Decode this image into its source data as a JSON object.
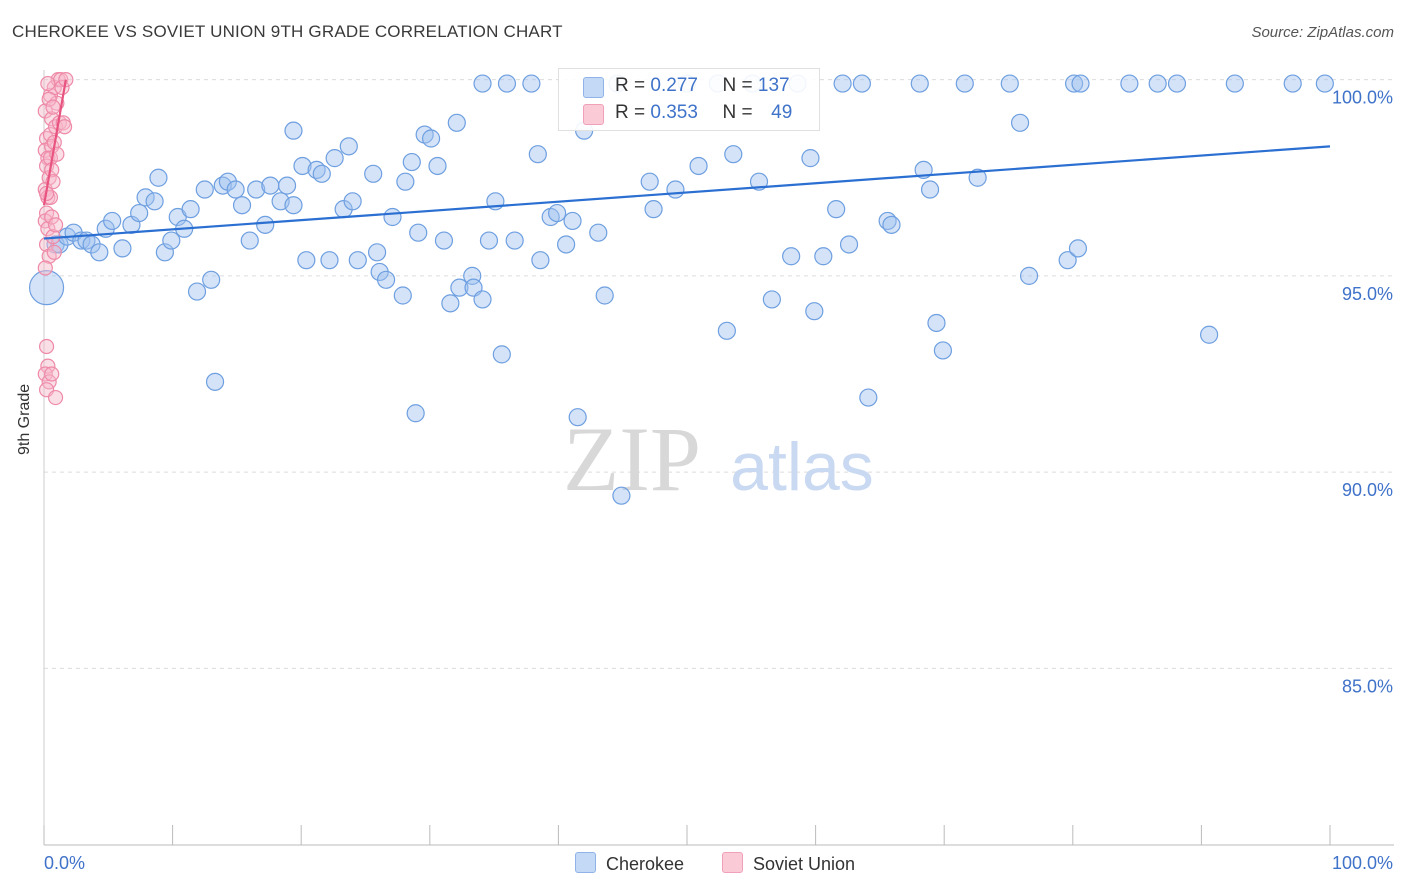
{
  "header": {
    "title": "CHEROKEE VS SOVIET UNION 9TH GRADE CORRELATION CHART",
    "source": "Source: ZipAtlas.com"
  },
  "watermark": {
    "zip": "ZIP",
    "atlas": "atlas"
  },
  "legend": {
    "r_label": "R =",
    "n_label": "N =",
    "items": [
      {
        "name": "Cherokee",
        "r": "0.277",
        "n": "137",
        "color": "#9fc1ef",
        "stroke": "#6e9fe0",
        "line": "#2a6fd1"
      },
      {
        "name": "Soviet Union",
        "r": "0.353",
        "n": "49",
        "color": "#f7b8ca",
        "stroke": "#ee8aa8",
        "line": "#e8547f"
      }
    ]
  },
  "chart_data": {
    "type": "scatter",
    "title": "CHEROKEE VS SOVIET UNION 9TH GRADE CORRELATION CHART",
    "xlabel": "",
    "ylabel": "9th Grade",
    "xlim": [
      0,
      100
    ],
    "ylim": [
      80.5,
      100.5
    ],
    "x_tick_labels": [
      "0.0%",
      "100.0%"
    ],
    "y_ticks": [
      85,
      90,
      95,
      100
    ],
    "y_tick_labels": [
      "85.0%",
      "90.0%",
      "95.0%",
      "100.0%"
    ],
    "grid": "horizontal dashed",
    "series": [
      {
        "name": "Cherokee",
        "r": 0.277,
        "n": 137,
        "trend": {
          "x": [
            0,
            100
          ],
          "y": [
            95.95,
            98.3
          ]
        },
        "points": [
          [
            0.2,
            94.7
          ],
          [
            0.9,
            95.8
          ],
          [
            1.2,
            95.8
          ],
          [
            1.8,
            96.0
          ],
          [
            2.3,
            96.1
          ],
          [
            2.9,
            95.9
          ],
          [
            3.3,
            95.9
          ],
          [
            3.7,
            95.8
          ],
          [
            4.3,
            95.6
          ],
          [
            4.8,
            96.2
          ],
          [
            5.3,
            96.4
          ],
          [
            6.1,
            95.7
          ],
          [
            6.8,
            96.3
          ],
          [
            7.4,
            96.6
          ],
          [
            7.9,
            97.0
          ],
          [
            8.6,
            96.9
          ],
          [
            8.9,
            97.5
          ],
          [
            9.4,
            95.6
          ],
          [
            9.9,
            95.9
          ],
          [
            10.4,
            96.5
          ],
          [
            10.9,
            96.2
          ],
          [
            11.4,
            96.7
          ],
          [
            11.9,
            94.6
          ],
          [
            12.5,
            97.2
          ],
          [
            13.0,
            94.9
          ],
          [
            13.3,
            92.3
          ],
          [
            13.9,
            97.3
          ],
          [
            14.3,
            97.4
          ],
          [
            14.9,
            97.2
          ],
          [
            15.4,
            96.8
          ],
          [
            16.0,
            95.9
          ],
          [
            16.5,
            97.2
          ],
          [
            17.2,
            96.3
          ],
          [
            17.6,
            97.3
          ],
          [
            18.4,
            96.9
          ],
          [
            18.9,
            97.3
          ],
          [
            19.4,
            96.8
          ],
          [
            19.4,
            98.7
          ],
          [
            20.1,
            97.8
          ],
          [
            20.4,
            95.4
          ],
          [
            21.2,
            97.7
          ],
          [
            21.6,
            97.6
          ],
          [
            22.2,
            95.4
          ],
          [
            22.6,
            98.0
          ],
          [
            23.3,
            96.7
          ],
          [
            23.7,
            98.3
          ],
          [
            24.0,
            96.9
          ],
          [
            24.4,
            95.4
          ],
          [
            25.6,
            97.6
          ],
          [
            25.9,
            95.6
          ],
          [
            26.1,
            95.1
          ],
          [
            26.6,
            94.9
          ],
          [
            27.1,
            96.5
          ],
          [
            27.9,
            94.5
          ],
          [
            28.1,
            97.4
          ],
          [
            28.6,
            97.9
          ],
          [
            28.9,
            91.5
          ],
          [
            29.1,
            96.1
          ],
          [
            29.6,
            98.6
          ],
          [
            30.1,
            98.5
          ],
          [
            30.6,
            97.8
          ],
          [
            31.1,
            95.9
          ],
          [
            31.6,
            94.3
          ],
          [
            32.1,
            98.9
          ],
          [
            32.3,
            94.7
          ],
          [
            33.3,
            95.0
          ],
          [
            33.4,
            94.7
          ],
          [
            34.1,
            94.4
          ],
          [
            34.1,
            99.9
          ],
          [
            34.6,
            95.9
          ],
          [
            35.1,
            96.9
          ],
          [
            35.6,
            93.0
          ],
          [
            36.0,
            99.9
          ],
          [
            36.6,
            95.9
          ],
          [
            37.9,
            99.9
          ],
          [
            38.4,
            98.1
          ],
          [
            38.6,
            95.4
          ],
          [
            39.4,
            96.5
          ],
          [
            39.9,
            96.6
          ],
          [
            40.6,
            95.8
          ],
          [
            41.1,
            96.4
          ],
          [
            41.5,
            91.4
          ],
          [
            42.0,
            98.7
          ],
          [
            43.1,
            96.1
          ],
          [
            43.6,
            94.5
          ],
          [
            44.6,
            99.9
          ],
          [
            44.9,
            89.4
          ],
          [
            47.1,
            97.4
          ],
          [
            47.4,
            96.7
          ],
          [
            49.1,
            97.2
          ],
          [
            50.0,
            99.9
          ],
          [
            50.9,
            97.8
          ],
          [
            52.4,
            99.9
          ],
          [
            53.1,
            93.6
          ],
          [
            53.6,
            98.1
          ],
          [
            55.1,
            99.9
          ],
          [
            55.6,
            97.4
          ],
          [
            56.6,
            94.4
          ],
          [
            58.1,
            95.5
          ],
          [
            58.6,
            99.9
          ],
          [
            59.6,
            98.0
          ],
          [
            59.9,
            94.1
          ],
          [
            60.6,
            95.5
          ],
          [
            61.6,
            96.7
          ],
          [
            62.1,
            99.9
          ],
          [
            62.6,
            95.8
          ],
          [
            63.6,
            99.9
          ],
          [
            64.1,
            91.9
          ],
          [
            65.6,
            96.4
          ],
          [
            65.9,
            96.3
          ],
          [
            68.1,
            99.9
          ],
          [
            68.4,
            97.7
          ],
          [
            68.9,
            97.2
          ],
          [
            69.4,
            93.8
          ],
          [
            69.9,
            93.1
          ],
          [
            71.6,
            99.9
          ],
          [
            72.6,
            97.5
          ],
          [
            75.1,
            99.9
          ],
          [
            75.9,
            98.9
          ],
          [
            76.6,
            95.0
          ],
          [
            79.6,
            95.4
          ],
          [
            80.1,
            99.9
          ],
          [
            80.4,
            95.7
          ],
          [
            80.6,
            99.9
          ],
          [
            84.4,
            99.9
          ],
          [
            86.6,
            99.9
          ],
          [
            88.1,
            99.9
          ],
          [
            90.6,
            93.5
          ],
          [
            92.6,
            99.9
          ],
          [
            97.1,
            99.9
          ],
          [
            99.6,
            99.9
          ]
        ]
      },
      {
        "name": "Soviet Union",
        "r": 0.353,
        "n": 49,
        "trend": {
          "x": [
            0,
            1.7
          ],
          "y": [
            96.8,
            100.0
          ]
        },
        "points": [
          [
            0.1,
            99.2
          ],
          [
            0.2,
            98.5
          ],
          [
            0.1,
            98.2
          ],
          [
            0.3,
            98.0
          ],
          [
            0.2,
            97.8
          ],
          [
            0.4,
            97.5
          ],
          [
            0.1,
            97.2
          ],
          [
            0.3,
            97.0
          ],
          [
            0.2,
            96.6
          ],
          [
            0.1,
            96.4
          ],
          [
            0.3,
            96.2
          ],
          [
            0.2,
            95.8
          ],
          [
            0.4,
            95.5
          ],
          [
            0.1,
            95.2
          ],
          [
            0.2,
            93.2
          ],
          [
            0.3,
            92.7
          ],
          [
            0.1,
            92.5
          ],
          [
            0.4,
            92.3
          ],
          [
            0.2,
            92.1
          ],
          [
            0.5,
            99.6
          ],
          [
            0.6,
            99.0
          ],
          [
            0.5,
            98.6
          ],
          [
            0.6,
            98.3
          ],
          [
            0.5,
            98.0
          ],
          [
            0.6,
            97.7
          ],
          [
            0.7,
            97.4
          ],
          [
            0.5,
            97.0
          ],
          [
            0.6,
            96.5
          ],
          [
            0.7,
            96.0
          ],
          [
            0.8,
            95.6
          ],
          [
            0.6,
            92.5
          ],
          [
            0.9,
            91.9
          ],
          [
            0.8,
            99.8
          ],
          [
            0.9,
            98.8
          ],
          [
            1.0,
            99.4
          ],
          [
            1.1,
            100.0
          ],
          [
            1.2,
            98.9
          ],
          [
            1.3,
            100.0
          ],
          [
            1.4,
            99.8
          ],
          [
            1.5,
            98.9
          ],
          [
            1.6,
            98.8
          ],
          [
            1.7,
            100.0
          ],
          [
            0.3,
            99.9
          ],
          [
            0.4,
            99.5
          ],
          [
            0.7,
            99.3
          ],
          [
            0.8,
            98.4
          ],
          [
            1.0,
            98.1
          ],
          [
            0.2,
            97.1
          ],
          [
            0.9,
            96.3
          ]
        ]
      }
    ]
  }
}
